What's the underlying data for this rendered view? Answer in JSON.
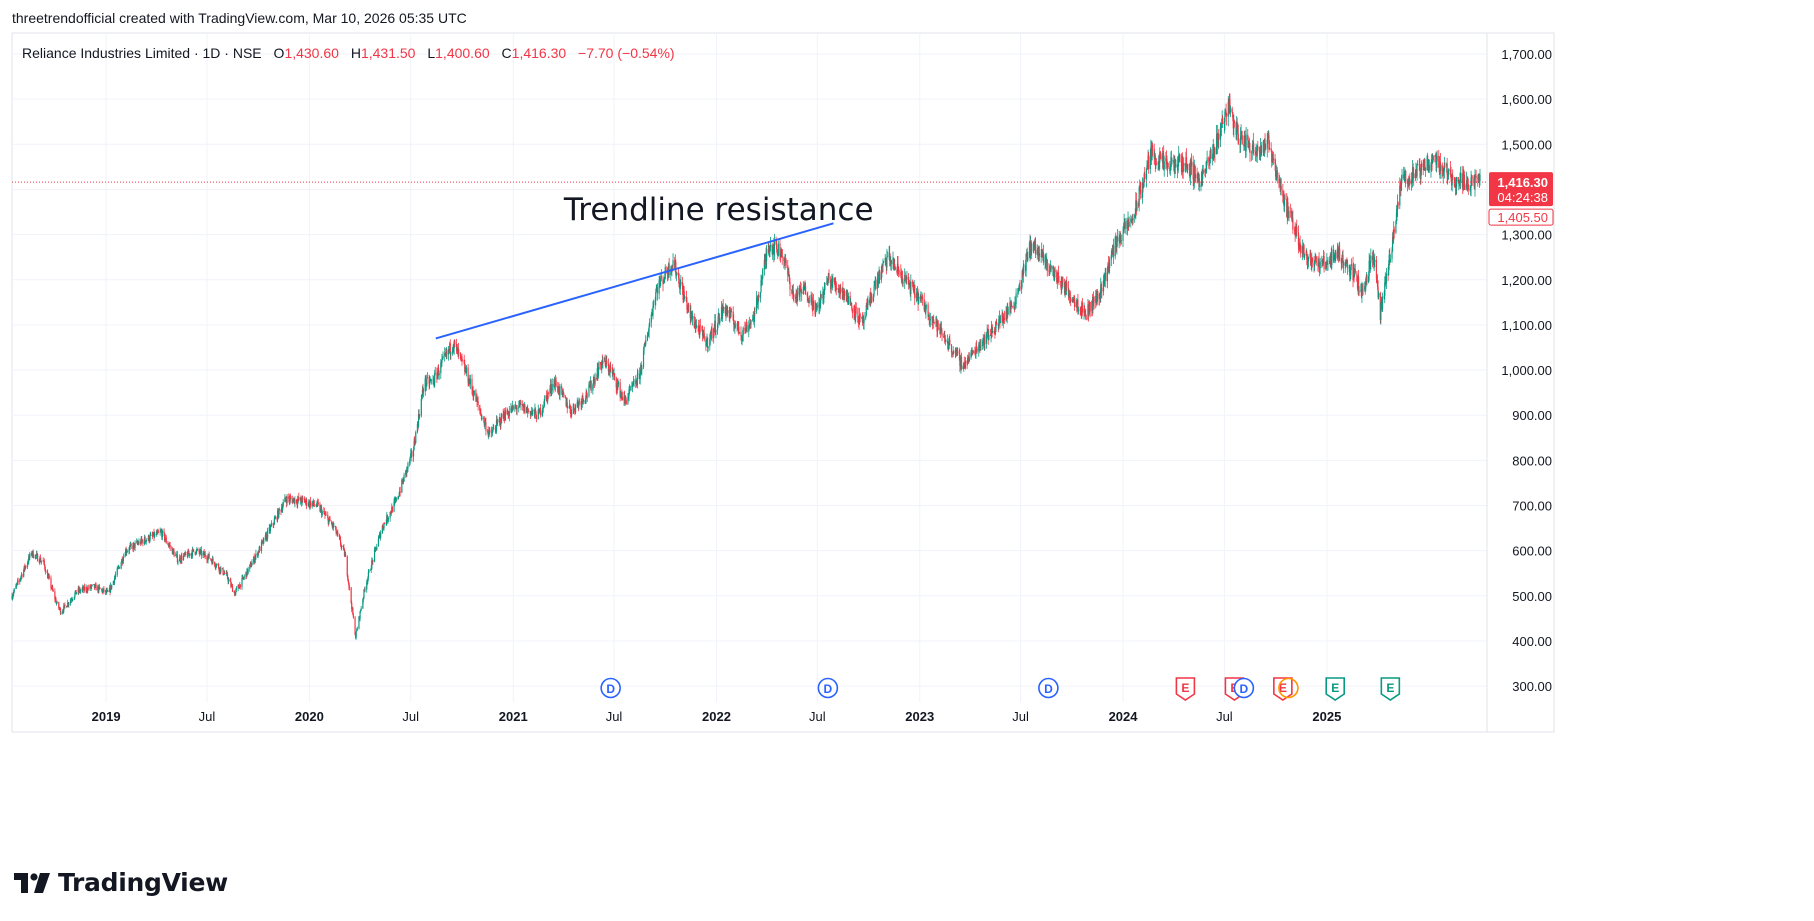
{
  "credit": "threetrendofficial created with TradingView.com, Mar 10, 2026 05:35 UTC",
  "legend": {
    "symbol": "Reliance Industries Limited · 1D · NSE",
    "o_label": "O",
    "o_value": "1,430.60",
    "h_label": "H",
    "h_value": "1,431.50",
    "l_label": "L",
    "l_value": "1,400.60",
    "c_label": "C",
    "c_value": "1,416.30",
    "change": "−7.70 (−0.54%)"
  },
  "brand": {
    "name": "TradingView",
    "icon": "tradingview-logo-icon"
  },
  "colors": {
    "up": "#089981",
    "down": "#f23645",
    "trendline": "#2962ff",
    "dividend": "#2962ff",
    "earnings_down": "#f23645",
    "earnings_up": "#089981"
  },
  "chart_data": {
    "type": "candlestick",
    "symbol": "Reliance Industries Limited",
    "interval": "1D",
    "exchange": "NSE",
    "ylim": [
      300,
      1700
    ],
    "y_ticks": [
      "1,700.00",
      "1,600.00",
      "1,500.00",
      "1,400.00",
      "1,300.00",
      "1,200.00",
      "1,100.00",
      "1,000.00",
      "900.00",
      "800.00",
      "700.00",
      "600.00",
      "500.00",
      "400.00",
      "300.00"
    ],
    "y_tick_values": [
      1700,
      1600,
      1500,
      1400,
      1300,
      1200,
      1100,
      1000,
      900,
      800,
      700,
      600,
      500,
      400,
      300
    ],
    "x_ticks": [
      {
        "label": "2019",
        "date": "2019-01-01",
        "bold": true
      },
      {
        "label": "Jul",
        "date": "2019-07-01",
        "bold": false
      },
      {
        "label": "2020",
        "date": "2020-01-01",
        "bold": true
      },
      {
        "label": "Jul",
        "date": "2020-07-01",
        "bold": false
      },
      {
        "label": "2021",
        "date": "2021-01-01",
        "bold": true
      },
      {
        "label": "Jul",
        "date": "2021-07-01",
        "bold": false
      },
      {
        "label": "2022",
        "date": "2022-01-01",
        "bold": true
      },
      {
        "label": "Jul",
        "date": "2022-07-01",
        "bold": false
      },
      {
        "label": "2023",
        "date": "2023-01-01",
        "bold": true
      },
      {
        "label": "Jul",
        "date": "2023-07-01",
        "bold": false
      },
      {
        "label": "2024",
        "date": "2024-01-01",
        "bold": true
      },
      {
        "label": "Jul",
        "date": "2024-07-01",
        "bold": false
      },
      {
        "label": "2025",
        "date": "2025-01-01",
        "bold": true
      }
    ],
    "x_range": [
      "2018-07-16",
      "2025-10-03"
    ],
    "price_path": [
      [
        "2018-07-16",
        500
      ],
      [
        "2018-08-20",
        595
      ],
      [
        "2018-09-10",
        575
      ],
      [
        "2018-10-05",
        480
      ],
      [
        "2018-10-12",
        465
      ],
      [
        "2018-11-10",
        510
      ],
      [
        "2018-12-10",
        520
      ],
      [
        "2019-01-05",
        505
      ],
      [
        "2019-02-05",
        600
      ],
      [
        "2019-03-05",
        620
      ],
      [
        "2019-04-10",
        640
      ],
      [
        "2019-05-10",
        580
      ],
      [
        "2019-06-10",
        600
      ],
      [
        "2019-07-05",
        585
      ],
      [
        "2019-08-05",
        545
      ],
      [
        "2019-08-20",
        505
      ],
      [
        "2019-09-10",
        550
      ],
      [
        "2019-10-15",
        630
      ],
      [
        "2019-11-20",
        715
      ],
      [
        "2019-12-20",
        710
      ],
      [
        "2020-01-15",
        700
      ],
      [
        "2020-02-15",
        650
      ],
      [
        "2020-03-05",
        590
      ],
      [
        "2020-03-24",
        410
      ],
      [
        "2020-04-10",
        520
      ],
      [
        "2020-05-10",
        650
      ],
      [
        "2020-06-05",
        710
      ],
      [
        "2020-07-05",
        820
      ],
      [
        "2020-07-25",
        970
      ],
      [
        "2020-08-10",
        975
      ],
      [
        "2020-09-15",
        1060
      ],
      [
        "2020-10-10",
        990
      ],
      [
        "2020-11-05",
        900
      ],
      [
        "2020-11-20",
        855
      ],
      [
        "2020-12-15",
        900
      ],
      [
        "2021-01-10",
        920
      ],
      [
        "2021-02-15",
        900
      ],
      [
        "2021-03-15",
        975
      ],
      [
        "2021-04-15",
        910
      ],
      [
        "2021-05-15",
        950
      ],
      [
        "2021-06-10",
        1020
      ],
      [
        "2021-06-25",
        1000
      ],
      [
        "2021-07-20",
        930
      ],
      [
        "2021-08-15",
        985
      ],
      [
        "2021-09-15",
        1180
      ],
      [
        "2021-10-15",
        1240
      ],
      [
        "2021-11-15",
        1120
      ],
      [
        "2021-12-15",
        1060
      ],
      [
        "2022-01-15",
        1140
      ],
      [
        "2022-02-15",
        1080
      ],
      [
        "2022-03-10",
        1120
      ],
      [
        "2022-04-05",
        1280
      ],
      [
        "2022-04-29",
        1260
      ],
      [
        "2022-05-20",
        1160
      ],
      [
        "2022-06-10",
        1180
      ],
      [
        "2022-06-30",
        1130
      ],
      [
        "2022-07-20",
        1200
      ],
      [
        "2022-08-20",
        1170
      ],
      [
        "2022-09-20",
        1100
      ],
      [
        "2022-10-10",
        1180
      ],
      [
        "2022-11-05",
        1250
      ],
      [
        "2022-12-05",
        1200
      ],
      [
        "2023-01-05",
        1150
      ],
      [
        "2023-02-10",
        1080
      ],
      [
        "2023-03-20",
        1010
      ],
      [
        "2023-04-20",
        1060
      ],
      [
        "2023-05-20",
        1100
      ],
      [
        "2023-06-20",
        1150
      ],
      [
        "2023-07-20",
        1280
      ],
      [
        "2023-08-20",
        1230
      ],
      [
        "2023-09-20",
        1180
      ],
      [
        "2023-10-26",
        1125
      ],
      [
        "2023-11-20",
        1170
      ],
      [
        "2023-12-20",
        1285
      ],
      [
        "2024-01-20",
        1340
      ],
      [
        "2024-02-20",
        1480
      ],
      [
        "2024-03-20",
        1450
      ],
      [
        "2024-04-20",
        1460
      ],
      [
        "2024-05-20",
        1420
      ],
      [
        "2024-06-10",
        1480
      ],
      [
        "2024-07-08",
        1590
      ],
      [
        "2024-07-25",
        1520
      ],
      [
        "2024-08-20",
        1490
      ],
      [
        "2024-09-20",
        1500
      ],
      [
        "2024-10-20",
        1360
      ],
      [
        "2024-11-20",
        1260
      ],
      [
        "2024-12-20",
        1230
      ],
      [
        "2025-01-20",
        1260
      ],
      [
        "2025-02-20",
        1210
      ],
      [
        "2025-03-05",
        1170
      ],
      [
        "2025-03-25",
        1260
      ],
      [
        "2025-04-07",
        1125
      ],
      [
        "2025-04-30",
        1290
      ],
      [
        "2025-05-15",
        1420
      ],
      [
        "2025-06-20",
        1440
      ],
      [
        "2025-07-10",
        1470
      ],
      [
        "2025-08-20",
        1420
      ],
      [
        "2025-10-03",
        1416
      ]
    ],
    "trendline": {
      "start": [
        "2020-08-15",
        1070
      ],
      "end": [
        "2022-07-30",
        1325
      ]
    },
    "annotations": [
      {
        "text": "Trendline resistance",
        "date": "2022-01-05",
        "price": 1350
      }
    ],
    "last_price": {
      "value": 1416.3,
      "label": "1,416.30",
      "countdown": "04:24:38"
    },
    "prev_price": {
      "value": 1405.5,
      "label": "1,405.50"
    },
    "events": [
      {
        "type": "dividend",
        "letter": "D",
        "date": "2021-06-25"
      },
      {
        "type": "dividend",
        "letter": "D",
        "date": "2022-07-20"
      },
      {
        "type": "dividend",
        "letter": "D",
        "date": "2023-08-20"
      },
      {
        "type": "earnings",
        "letter": "E",
        "date": "2024-04-22",
        "trend": "down"
      },
      {
        "type": "earnings",
        "letter": "E",
        "date": "2024-07-19",
        "trend": "down"
      },
      {
        "type": "dividend",
        "letter": "D",
        "date": "2024-08-05"
      },
      {
        "type": "earnings",
        "letter": "E",
        "date": "2024-10-14",
        "trend": "down"
      },
      {
        "type": "split",
        "letter": "",
        "date": "2024-10-24"
      },
      {
        "type": "earnings",
        "letter": "E",
        "date": "2025-01-16",
        "trend": "up"
      },
      {
        "type": "earnings",
        "letter": "E",
        "date": "2025-04-25",
        "trend": "up"
      }
    ],
    "grid": true
  }
}
